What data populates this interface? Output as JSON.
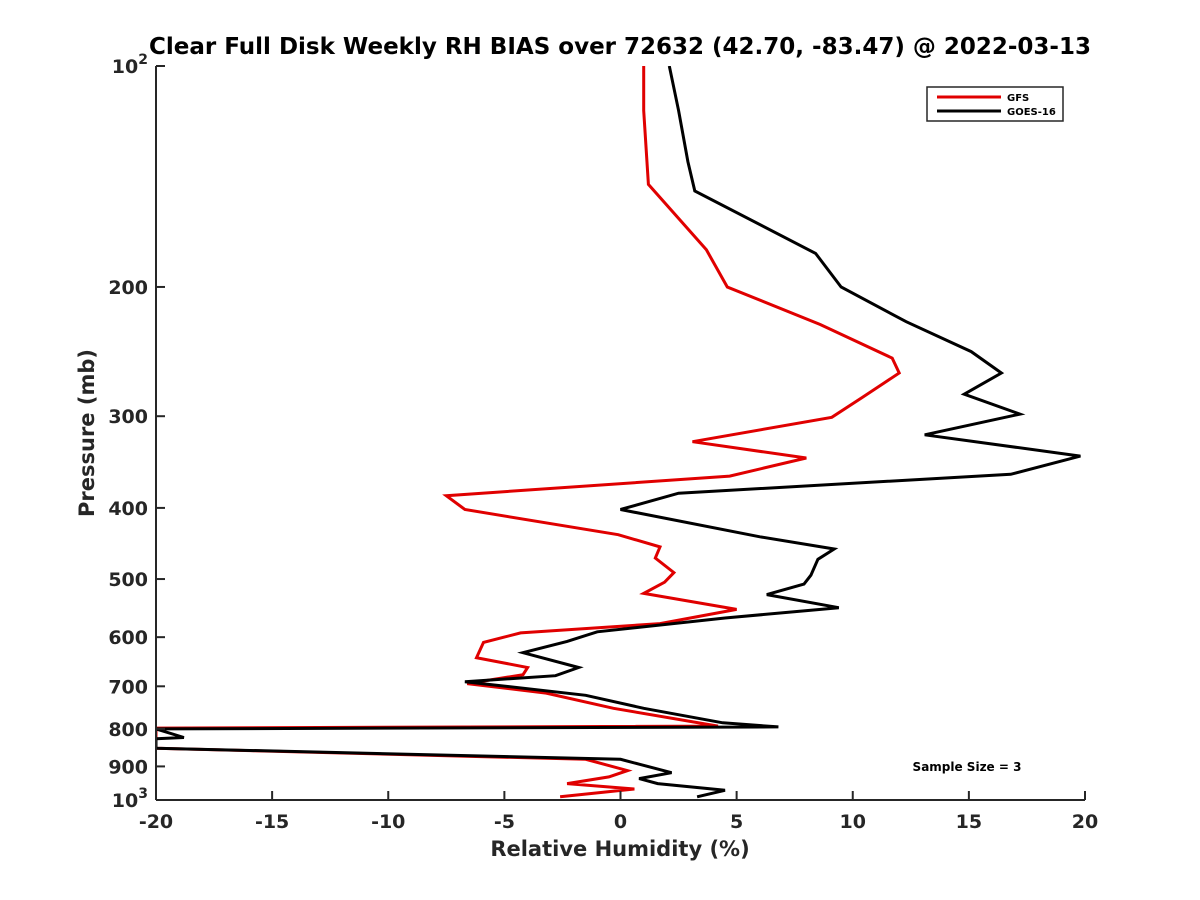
{
  "chart_data": {
    "type": "line",
    "title": "Clear Full Disk Weekly RH BIAS over 72632 (42.70, -83.47) @ 2022-03-13",
    "xlabel": "Relative Humidity (%)",
    "ylabel": "Pressure (mb)",
    "xlim": [
      -20,
      20
    ],
    "ylim": [
      100,
      1000
    ],
    "y_scale": "log",
    "y_reversed": true,
    "grid": false,
    "legend_position": "top-right",
    "x_ticks": [
      "-20",
      "-15",
      "-10",
      "-5",
      "0",
      "5",
      "10",
      "15",
      "20"
    ],
    "y_ticks": [
      {
        "value": 100,
        "label": "10",
        "sup": "2"
      },
      {
        "value": 200,
        "label": "200",
        "sup": ""
      },
      {
        "value": 300,
        "label": "300",
        "sup": ""
      },
      {
        "value": 400,
        "label": "400",
        "sup": ""
      },
      {
        "value": 500,
        "label": "500",
        "sup": ""
      },
      {
        "value": 600,
        "label": "600",
        "sup": ""
      },
      {
        "value": 700,
        "label": "700",
        "sup": ""
      },
      {
        "value": 800,
        "label": "800",
        "sup": ""
      },
      {
        "value": 900,
        "label": "900",
        "sup": ""
      },
      {
        "value": 1000,
        "label": "10",
        "sup": "3"
      }
    ],
    "annotation": "Sample Size = 3",
    "series": [
      {
        "name": "GFS",
        "color": "#e00000",
        "points": [
          [
            1.0,
            100
          ],
          [
            1.0,
            115
          ],
          [
            1.2,
            145
          ],
          [
            3.7,
            178
          ],
          [
            4.6,
            200
          ],
          [
            8.6,
            225
          ],
          [
            11.7,
            250
          ],
          [
            12.0,
            262
          ],
          [
            10.4,
            283
          ],
          [
            9.1,
            301
          ],
          [
            3.1,
            325
          ],
          [
            8.0,
            342
          ],
          [
            4.7,
            362
          ],
          [
            -7.5,
            385
          ],
          [
            -6.7,
            402
          ],
          [
            -0.1,
            435
          ],
          [
            1.7,
            452
          ],
          [
            1.5,
            468
          ],
          [
            2.3,
            490
          ],
          [
            1.9,
            505
          ],
          [
            1.0,
            523
          ],
          [
            5.0,
            550
          ],
          [
            1.7,
            575
          ],
          [
            -4.3,
            592
          ],
          [
            -5.9,
            610
          ],
          [
            -6.2,
            640
          ],
          [
            -4.0,
            660
          ],
          [
            -4.2,
            675
          ],
          [
            -6.6,
            694
          ],
          [
            -3.2,
            715
          ],
          [
            -0.3,
            750
          ],
          [
            4.2,
            793
          ],
          [
            -20.0,
            798
          ],
          [
            -20.0,
            850
          ],
          [
            -1.5,
            880
          ],
          [
            0.3,
            912
          ],
          [
            -0.5,
            930
          ],
          [
            -2.3,
            950
          ],
          [
            0.6,
            966
          ],
          [
            -2.6,
            990
          ]
        ]
      },
      {
        "name": "GOES-16",
        "color": "#000000",
        "points": [
          [
            2.1,
            100
          ],
          [
            2.5,
            115
          ],
          [
            2.9,
            135
          ],
          [
            3.2,
            148
          ],
          [
            8.4,
            180
          ],
          [
            9.5,
            200
          ],
          [
            12.3,
            223
          ],
          [
            15.1,
            245
          ],
          [
            16.4,
            262
          ],
          [
            14.8,
            280
          ],
          [
            17.2,
            298
          ],
          [
            13.1,
            318
          ],
          [
            19.8,
            340
          ],
          [
            16.8,
            360
          ],
          [
            2.5,
            382
          ],
          [
            0.0,
            402
          ],
          [
            6.0,
            438
          ],
          [
            9.2,
            455
          ],
          [
            8.5,
            470
          ],
          [
            8.2,
            494
          ],
          [
            7.9,
            508
          ],
          [
            6.3,
            525
          ],
          [
            9.4,
            547
          ],
          [
            4.5,
            565
          ],
          [
            -1.0,
            590
          ],
          [
            -2.3,
            608
          ],
          [
            -4.2,
            630
          ],
          [
            -1.8,
            660
          ],
          [
            -2.8,
            677
          ],
          [
            -6.7,
            690
          ],
          [
            -1.5,
            720
          ],
          [
            1.0,
            750
          ],
          [
            4.4,
            785
          ],
          [
            6.8,
            795
          ],
          [
            -20.0,
            800
          ],
          [
            -18.8,
            822
          ],
          [
            -20.0,
            825
          ],
          [
            -20.0,
            850
          ],
          [
            0.0,
            880
          ],
          [
            2.2,
            918
          ],
          [
            0.8,
            935
          ],
          [
            1.6,
            950
          ],
          [
            4.5,
            970
          ],
          [
            3.3,
            990
          ]
        ]
      }
    ]
  }
}
